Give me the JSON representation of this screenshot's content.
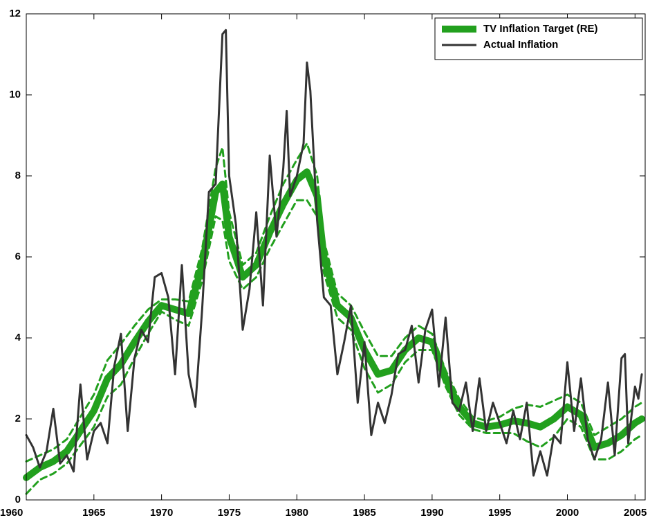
{
  "chart_data": {
    "type": "line",
    "xlim": [
      1960,
      2005.75
    ],
    "xticks": [
      1960,
      1965,
      1970,
      1975,
      1980,
      1985,
      1990,
      1995,
      2000,
      2005
    ],
    "ylim": [
      0,
      12
    ],
    "yticks": [
      0,
      2,
      4,
      6,
      8,
      10,
      12
    ],
    "legend": "upper-right",
    "series": [
      {
        "name": "TV Inflation Target (RE)",
        "color": "#22a01e",
        "width": 10,
        "x": [
          1960,
          1961,
          1962,
          1963,
          1964,
          1965,
          1966,
          1967,
          1968,
          1969,
          1970,
          1971,
          1972,
          1973,
          1974,
          1974.5,
          1975,
          1976,
          1977,
          1978,
          1979,
          1980,
          1980.75,
          1981.5,
          1982,
          1983,
          1984,
          1985,
          1986,
          1987,
          1988,
          1989,
          1990,
          1991,
          1992,
          1993,
          1994,
          1995,
          1996,
          1997,
          1998,
          1999,
          2000,
          2001,
          2002,
          2003,
          2004,
          2005,
          2005.5
        ],
        "values": [
          0.55,
          0.8,
          0.95,
          1.2,
          1.7,
          2.2,
          3.0,
          3.35,
          3.9,
          4.4,
          4.8,
          4.7,
          4.6,
          5.8,
          7.6,
          7.8,
          6.5,
          5.5,
          5.8,
          6.6,
          7.3,
          7.9,
          8.1,
          7.5,
          6.0,
          4.8,
          4.5,
          3.7,
          3.1,
          3.2,
          3.7,
          4.0,
          3.9,
          3.0,
          2.3,
          1.9,
          1.8,
          1.85,
          1.95,
          1.9,
          1.8,
          2.0,
          2.3,
          2.1,
          1.3,
          1.4,
          1.6,
          1.9,
          2.0
        ]
      },
      {
        "name": "Actual Inflation",
        "color": "#333333",
        "width": 3,
        "x": [
          1960,
          1960.5,
          1961,
          1961.5,
          1962,
          1962.5,
          1963,
          1963.5,
          1964,
          1964.5,
          1965,
          1965.5,
          1966,
          1966.5,
          1967,
          1967.5,
          1968,
          1968.5,
          1969,
          1969.5,
          1970,
          1970.5,
          1971,
          1971.5,
          1972,
          1972.5,
          1973,
          1973.5,
          1974,
          1974.5,
          1974.75,
          1975,
          1975.5,
          1976,
          1976.5,
          1977,
          1977.5,
          1978,
          1978.5,
          1979,
          1979.25,
          1979.5,
          1980,
          1980.5,
          1980.75,
          1981,
          1981.5,
          1982,
          1982.5,
          1983,
          1983.5,
          1984,
          1984.5,
          1985,
          1985.5,
          1986,
          1986.5,
          1987,
          1987.5,
          1988,
          1988.5,
          1989,
          1989.5,
          1990,
          1990.5,
          1991,
          1991.5,
          1992,
          1992.5,
          1993,
          1993.5,
          1994,
          1994.5,
          1995,
          1995.5,
          1996,
          1996.5,
          1997,
          1997.5,
          1998,
          1998.5,
          1999,
          1999.5,
          2000,
          2000.5,
          2001,
          2001.5,
          2002,
          2002.5,
          2003,
          2003.5,
          2004,
          2004.25,
          2004.5,
          2005,
          2005.25,
          2005.5
        ],
        "values": [
          1.6,
          1.3,
          0.8,
          1.2,
          2.25,
          0.9,
          1.1,
          0.7,
          2.85,
          1.0,
          1.7,
          1.9,
          1.4,
          3.3,
          4.1,
          1.7,
          3.5,
          4.2,
          3.9,
          5.5,
          5.6,
          5.0,
          3.1,
          5.8,
          3.1,
          2.3,
          4.7,
          7.6,
          7.8,
          11.5,
          11.6,
          8.0,
          6.8,
          4.2,
          5.2,
          7.1,
          4.8,
          8.5,
          6.5,
          8.2,
          9.6,
          7.5,
          8.0,
          8.8,
          10.8,
          10.1,
          6.9,
          5.0,
          4.8,
          3.1,
          3.9,
          4.8,
          2.4,
          3.9,
          1.6,
          2.4,
          1.9,
          2.6,
          3.6,
          3.7,
          4.3,
          2.9,
          4.2,
          4.7,
          2.8,
          4.5,
          2.4,
          2.2,
          2.9,
          1.7,
          3.0,
          1.7,
          2.4,
          1.9,
          1.4,
          2.2,
          1.5,
          2.4,
          0.6,
          1.2,
          0.6,
          1.6,
          1.4,
          3.4,
          1.7,
          3.0,
          1.5,
          1.0,
          1.5,
          2.9,
          1.1,
          3.5,
          3.6,
          1.4,
          2.8,
          2.5,
          3.1
        ]
      },
      {
        "color": "#22a01e",
        "width": 3,
        "dash": true,
        "x": [
          1960,
          1961,
          1962,
          1963,
          1964,
          1965,
          1966,
          1967,
          1968,
          1969,
          1970,
          1971,
          1972,
          1973,
          1974,
          1974.5,
          1975,
          1976,
          1977,
          1978,
          1979,
          1980,
          1980.75,
          1981.5,
          1982,
          1983,
          1984,
          1985,
          1986,
          1987,
          1988,
          1989,
          1990,
          1991,
          1992,
          1993,
          1994,
          1995,
          1996,
          1997,
          1998,
          1999,
          2000,
          2001,
          2002,
          2003,
          2004,
          2005,
          2005.5
        ],
        "values": [
          0.95,
          1.1,
          1.25,
          1.5,
          2.05,
          2.6,
          3.45,
          3.85,
          4.3,
          4.7,
          4.95,
          4.95,
          4.9,
          6.2,
          8.2,
          8.7,
          7.1,
          5.8,
          6.1,
          7.0,
          7.8,
          8.4,
          8.8,
          8.0,
          6.4,
          5.1,
          4.8,
          4.15,
          3.55,
          3.55,
          4.0,
          4.3,
          4.1,
          3.2,
          2.5,
          2.05,
          1.95,
          2.05,
          2.25,
          2.35,
          2.3,
          2.45,
          2.6,
          2.4,
          1.6,
          1.8,
          2.0,
          2.3,
          2.4
        ]
      },
      {
        "color": "#22a01e",
        "width": 3,
        "dash": true,
        "x": [
          1960,
          1961,
          1962,
          1963,
          1964,
          1965,
          1966,
          1967,
          1968,
          1969,
          1970,
          1971,
          1972,
          1973,
          1974,
          1974.5,
          1975,
          1976,
          1977,
          1978,
          1979,
          1980,
          1980.75,
          1981.5,
          1982,
          1983,
          1984,
          1985,
          1986,
          1987,
          1988,
          1989,
          1990,
          1991,
          1992,
          1993,
          1994,
          1995,
          1996,
          1997,
          1998,
          1999,
          2000,
          2001,
          2002,
          2003,
          2004,
          2005,
          2005.5
        ],
        "values": [
          0.15,
          0.5,
          0.65,
          0.9,
          1.35,
          1.8,
          2.55,
          2.85,
          3.5,
          4.1,
          4.65,
          4.45,
          4.3,
          5.4,
          7.0,
          6.9,
          5.9,
          5.2,
          5.5,
          6.2,
          6.8,
          7.4,
          7.4,
          7.0,
          5.6,
          4.5,
          4.2,
          3.25,
          2.65,
          2.85,
          3.4,
          3.7,
          3.7,
          2.8,
          2.1,
          1.75,
          1.65,
          1.65,
          1.65,
          1.45,
          1.3,
          1.55,
          2.0,
          1.8,
          1.0,
          1.0,
          1.2,
          1.5,
          1.6
        ]
      }
    ]
  }
}
